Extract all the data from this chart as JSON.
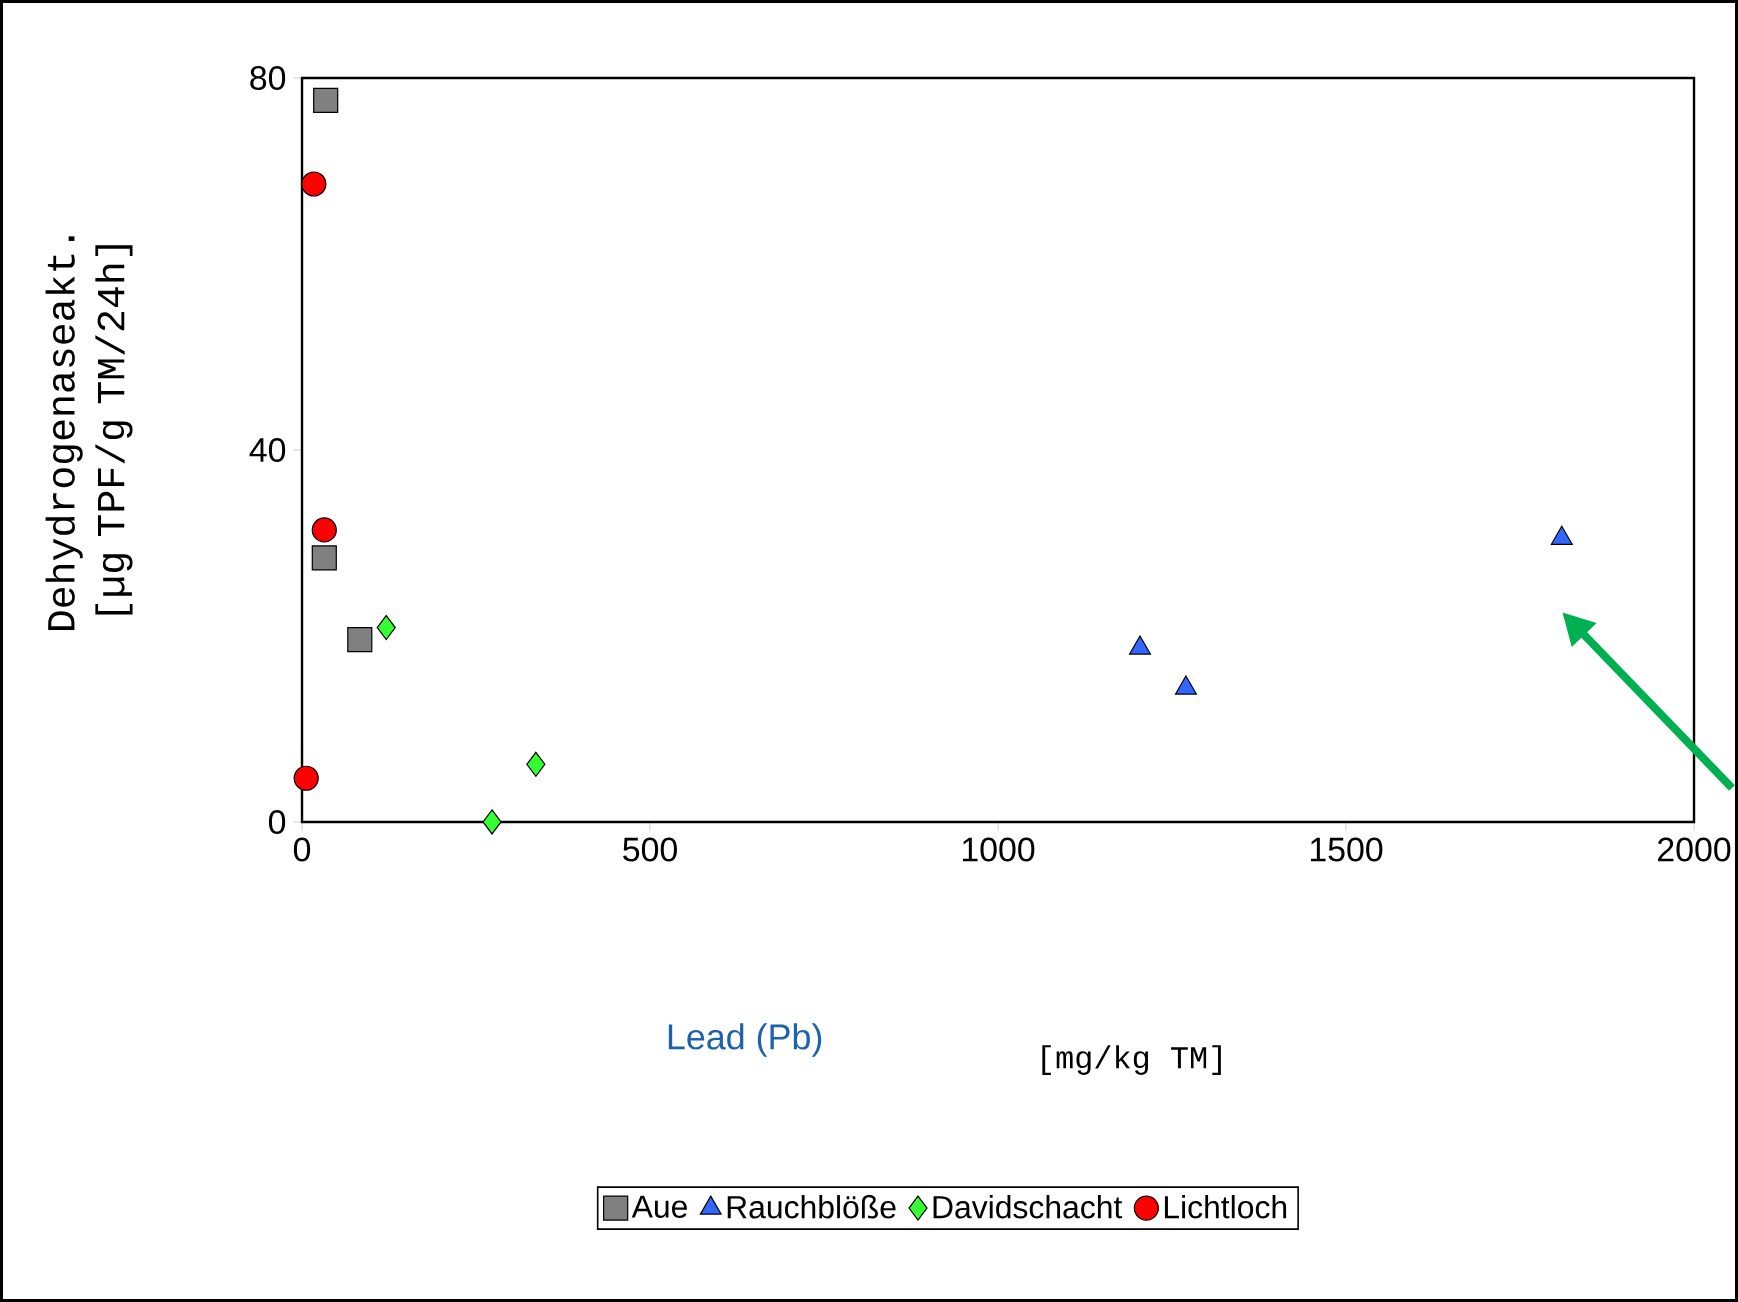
{
  "chart_data": {
    "type": "scatter",
    "xlabel": "Lead (Pb)",
    "ylabel": "Dehydrogenaseakt. [µg TPF/g TM/24h]",
    "annotations": [
      "[mg/kg TM]"
    ],
    "xlim": [
      0,
      2000
    ],
    "xticks": [
      0,
      500,
      1000,
      1500,
      2000
    ],
    "ylim": [
      0,
      80
    ],
    "yticks": [
      0,
      40,
      80
    ],
    "grid": false,
    "legend": "bottom",
    "series": [
      {
        "name": "Aue",
        "color": "#808080",
        "marker": "square",
        "x": [
          34,
          32,
          83
        ],
        "values": [
          77.6,
          28.4,
          19.6
        ]
      },
      {
        "name": "Rauchblöße",
        "color": "#3366ff",
        "marker": "triangle",
        "x": [
          1204,
          1270,
          1810
        ],
        "values": [
          18.7,
          14.4,
          30.5
        ]
      },
      {
        "name": "Davidschacht",
        "color": "#33ff33",
        "marker": "diamond",
        "x": [
          121,
          273,
          336
        ],
        "values": [
          20.9,
          0,
          6.2
        ]
      },
      {
        "name": "Lichtloch",
        "color": "#ff0000",
        "marker": "circle",
        "x": [
          17,
          32,
          6
        ],
        "values": [
          68.6,
          31.4,
          4.7
        ]
      }
    ]
  }
}
